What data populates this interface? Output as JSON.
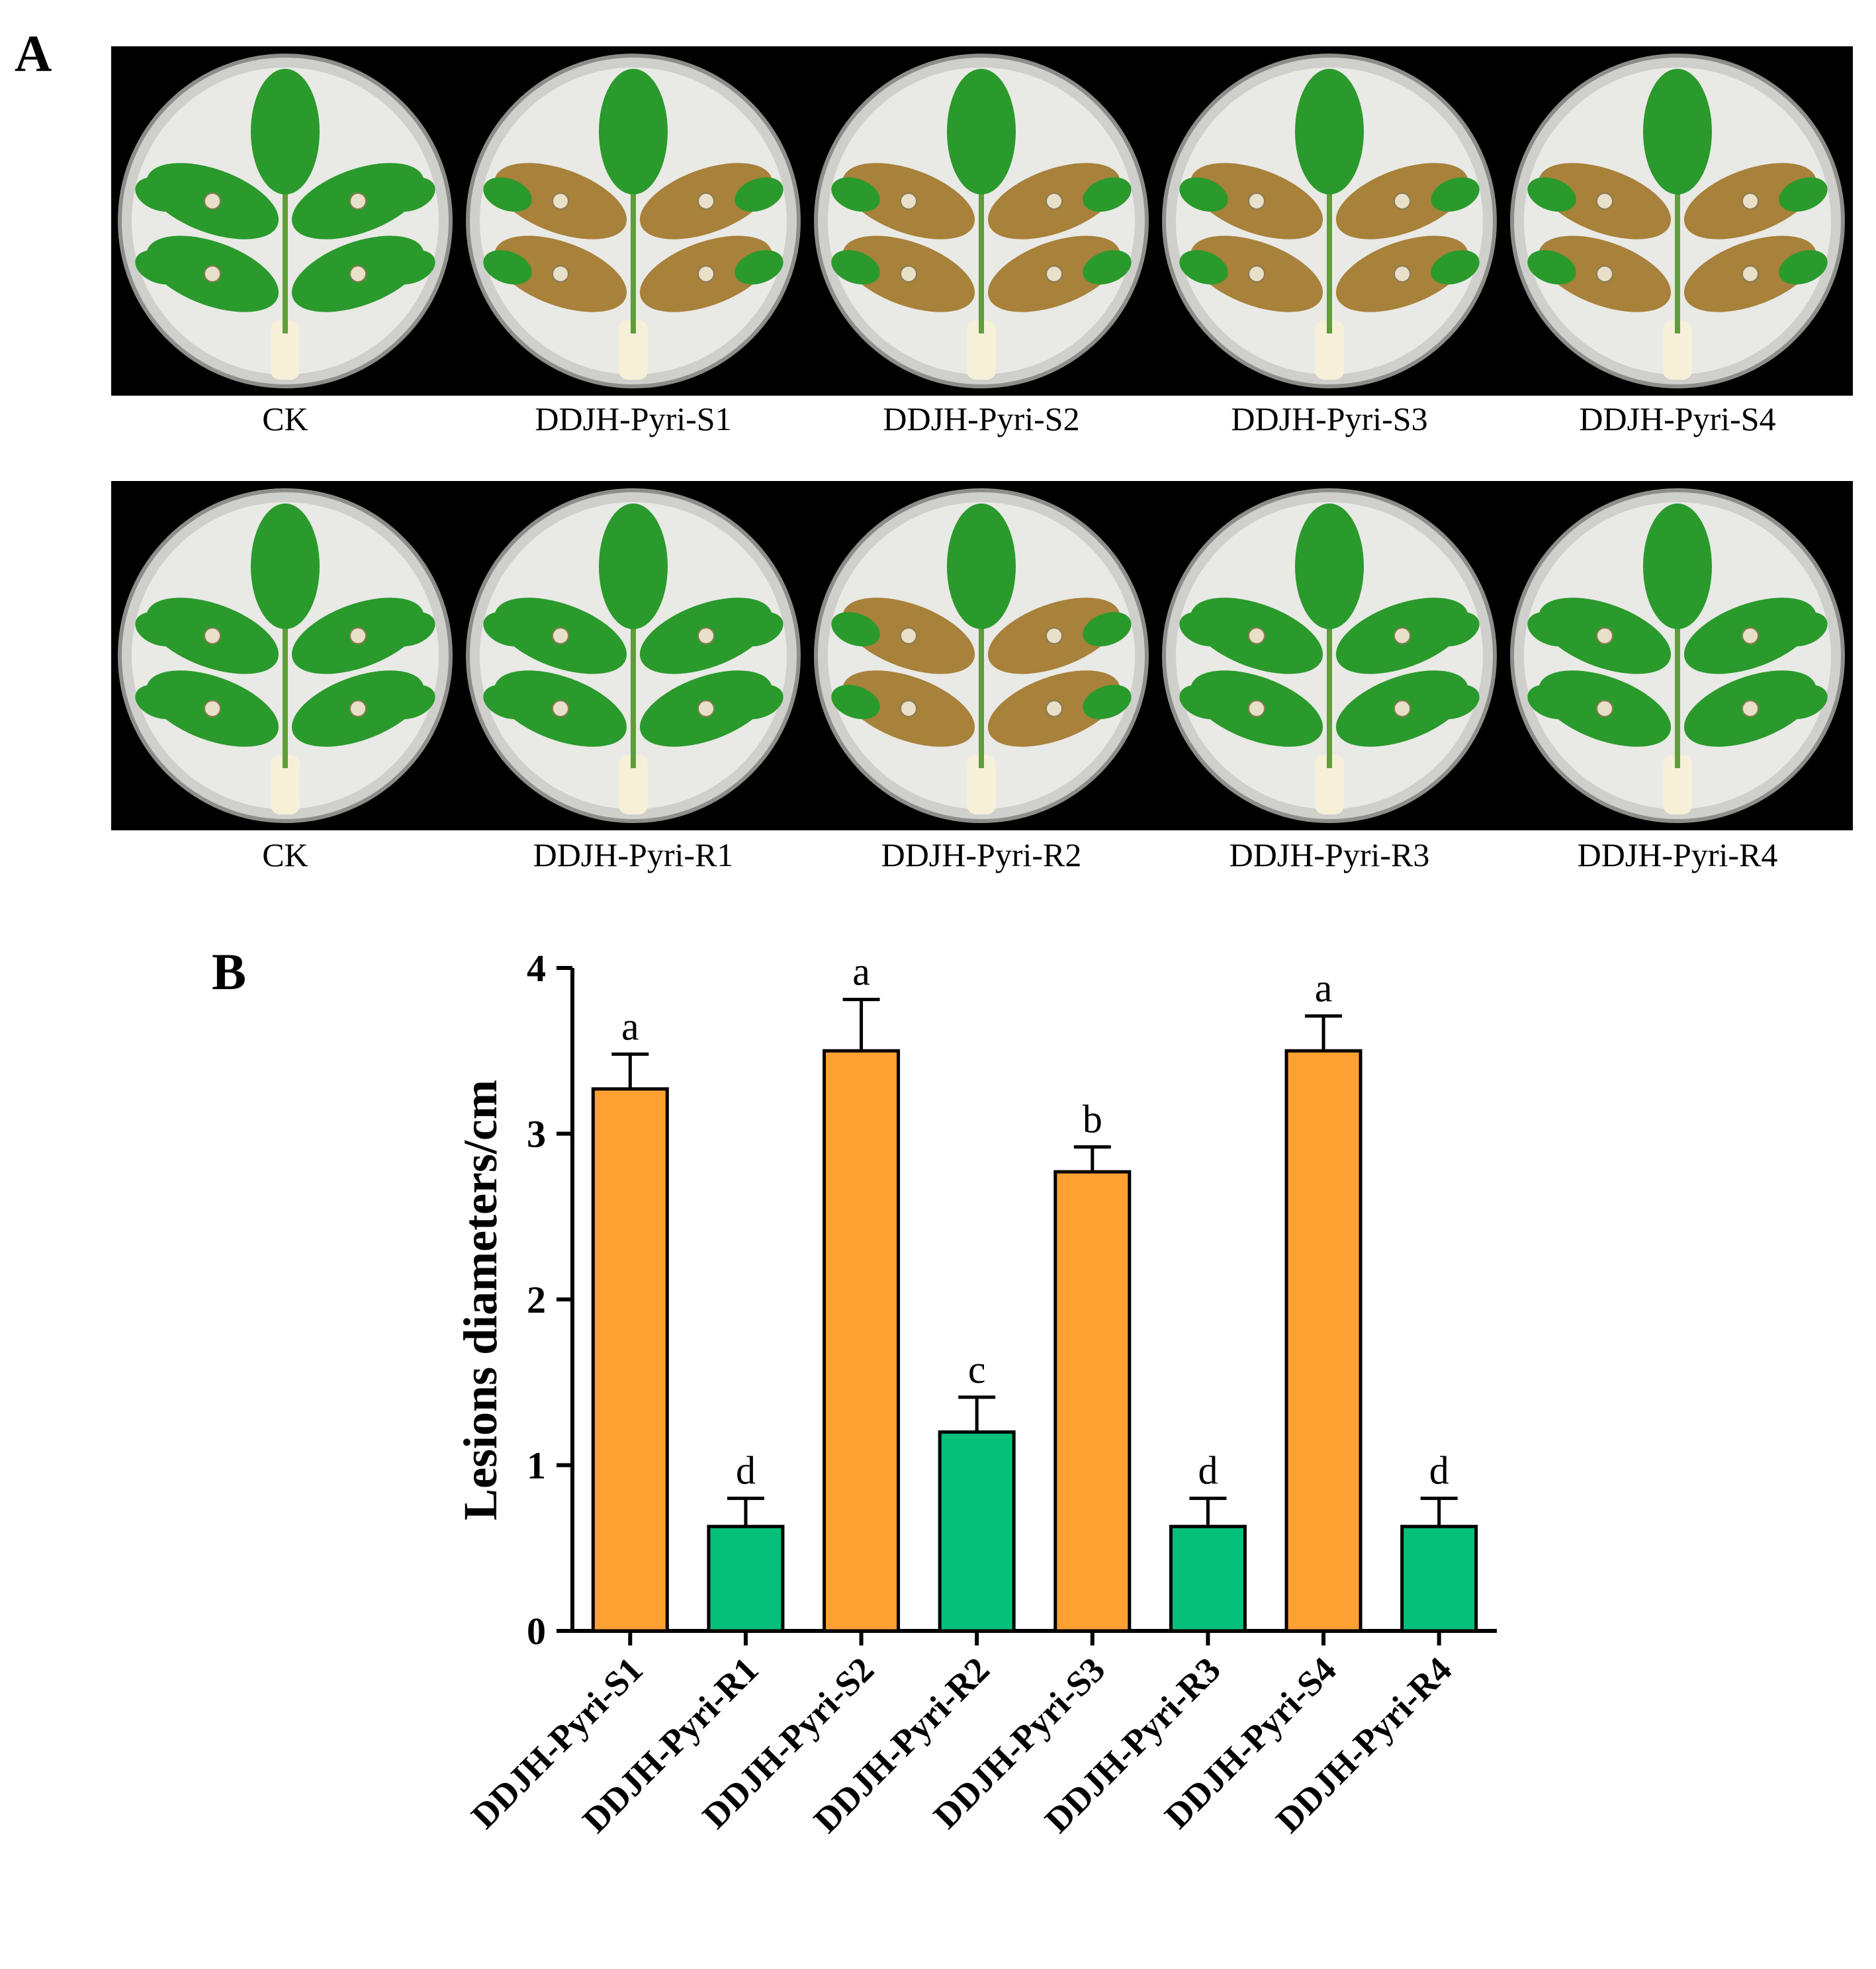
{
  "panel_a": {
    "letter": "A",
    "top_row_labels": [
      "CK",
      "DDJH-Pyri-S1",
      "DDJH-Pyri-S2",
      "DDJH-Pyri-S3",
      "DDJH-Pyri-S4"
    ],
    "bottom_row_labels": [
      "CK",
      "DDJH-Pyri-R1",
      "DDJH-Pyri-R2",
      "DDJH-Pyri-R3",
      "DDJH-Pyri-R4"
    ],
    "colors": {
      "background": "#000000",
      "dish": "#e9e9e6",
      "leaf": "#2a9a2c",
      "lesion": "#a8813a"
    }
  },
  "panel_b": {
    "letter": "B"
  },
  "chart_data": {
    "type": "bar",
    "title": "",
    "xlabel": "",
    "ylabel": "Lesions diameters/cm",
    "ylim": [
      0,
      4
    ],
    "yticks": [
      0,
      1,
      2,
      3,
      4
    ],
    "categories": [
      "DDJH-Pyri-S1",
      "DDJH-Pyri-R1",
      "DDJH-Pyri-S2",
      "DDJH-Pyri-R2",
      "DDJH-Pyri-S3",
      "DDJH-Pyri-R3",
      "DDJH-Pyri-S4",
      "DDJH-Pyri-R4"
    ],
    "values": [
      3.27,
      0.63,
      3.5,
      1.2,
      2.77,
      0.63,
      3.5,
      0.63
    ],
    "errors": [
      0.21,
      0.17,
      0.31,
      0.21,
      0.15,
      0.17,
      0.21,
      0.17
    ],
    "significance": [
      "a",
      "d",
      "a",
      "c",
      "b",
      "d",
      "a",
      "d"
    ],
    "bar_colors": [
      "#ffa033",
      "#05c07a",
      "#ffa033",
      "#05c07a",
      "#ffa033",
      "#05c07a",
      "#ffa033",
      "#05c07a"
    ],
    "grid": false,
    "legend": "none"
  }
}
